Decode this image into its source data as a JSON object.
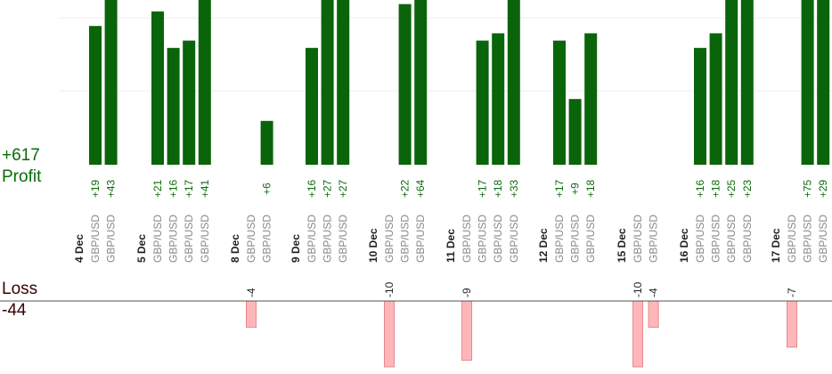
{
  "summary": {
    "profit_total": "+617",
    "profit_label": "Profit",
    "loss_label": "Loss",
    "loss_total": "-44"
  },
  "colors": {
    "profit_bar": "#0a640a",
    "profit_text": "#0a6b0a",
    "loss_bar": "#ffb6b9",
    "loss_stroke": "#e58a8f",
    "pair_text": "#888888",
    "date_text": "#222222",
    "grid": "#eeeeee"
  },
  "chart_data": {
    "type": "bar",
    "title": "",
    "xlabel": "",
    "ylabel": "",
    "grid": true,
    "days": [
      {
        "date": "4 Dec",
        "trades": [
          {
            "pair": "GBP/USD",
            "profit": 19
          },
          {
            "pair": "GBP/USD",
            "profit": 43
          }
        ]
      },
      {
        "date": "5 Dec",
        "trades": [
          {
            "pair": "GBP/USD",
            "profit": 21
          },
          {
            "pair": "GBP/USD",
            "profit": 16
          },
          {
            "pair": "GBP/USD",
            "profit": 17
          },
          {
            "pair": "GBP/USD",
            "profit": 41
          }
        ]
      },
      {
        "date": "8 Dec",
        "trades": [
          {
            "pair": "GBP/USD",
            "loss": -4
          },
          {
            "pair": "GBP/USD",
            "profit": 6
          }
        ]
      },
      {
        "date": "9 Dec",
        "trades": [
          {
            "pair": "GBP/USD",
            "profit": 16
          },
          {
            "pair": "GBP/USD",
            "profit": 27
          },
          {
            "pair": "GBP/USD",
            "profit": 27
          }
        ]
      },
      {
        "date": "10 Dec",
        "trades": [
          {
            "pair": "GBP/USD",
            "loss": -10
          },
          {
            "pair": "GBP/USD",
            "profit": 22
          },
          {
            "pair": "GBP/USD",
            "profit": 64
          }
        ]
      },
      {
        "date": "11 Dec",
        "trades": [
          {
            "pair": "GBP/USD",
            "loss": -9
          },
          {
            "pair": "GBP/USD",
            "profit": 17
          },
          {
            "pair": "GBP/USD",
            "profit": 18
          },
          {
            "pair": "GBP/USD",
            "profit": 33
          }
        ]
      },
      {
        "date": "12 Dec",
        "trades": [
          {
            "pair": "GBP/USD",
            "profit": 17
          },
          {
            "pair": "GBP/USD",
            "profit": 9
          },
          {
            "pair": "GBP/USD",
            "profit": 18
          }
        ]
      },
      {
        "date": "15 Dec",
        "trades": [
          {
            "pair": "GBP/USD",
            "loss": -10
          },
          {
            "pair": "GBP/USD",
            "loss": -4
          }
        ]
      },
      {
        "date": "16 Dec",
        "trades": [
          {
            "pair": "GBP/USD",
            "profit": 16
          },
          {
            "pair": "GBP/USD",
            "profit": 18
          },
          {
            "pair": "GBP/USD",
            "profit": 25
          },
          {
            "pair": "GBP/USD",
            "profit": 23
          }
        ]
      },
      {
        "date": "17 Dec",
        "trades": [
          {
            "pair": "GBP/USD",
            "loss": -7
          },
          {
            "pair": "GBP/USD",
            "profit": 75
          },
          {
            "pair": "GBP/USD",
            "profit": 29
          }
        ]
      }
    ]
  }
}
